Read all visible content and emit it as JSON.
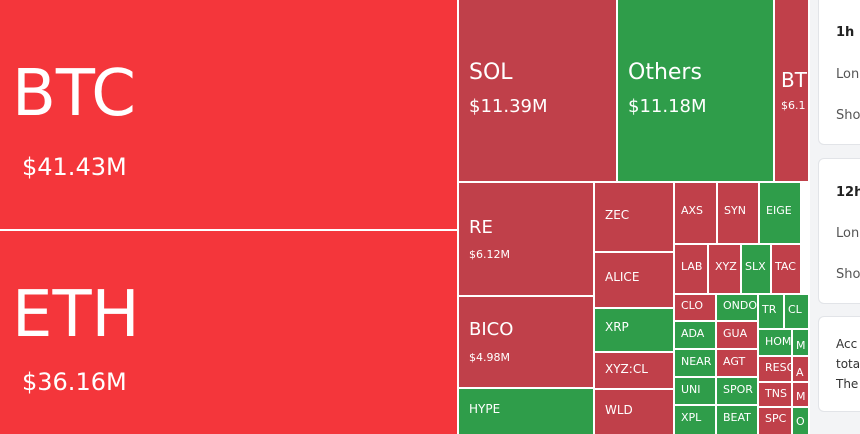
{
  "tiles": [
    {
      "label": "BTC",
      "value": "$41.43M"
    },
    {
      "label": "ETH",
      "value": "$36.16M"
    },
    {
      "label": "SOL",
      "value": "$11.39M"
    },
    {
      "label": "Others",
      "value": "$11.18M"
    },
    {
      "label": "BT",
      "value": "$6.1"
    },
    {
      "label": "RE",
      "value": "$6.12M"
    },
    {
      "label": "BICO",
      "value": "$4.98M"
    },
    {
      "label": "HYPE"
    },
    {
      "label": "ZEC"
    },
    {
      "label": "ALICE"
    },
    {
      "label": "XRP"
    },
    {
      "label": "XYZ:CL"
    },
    {
      "label": "WLD"
    },
    {
      "label": "AXS"
    },
    {
      "label": "SYN"
    },
    {
      "label": "EIGE"
    },
    {
      "label": "LAB"
    },
    {
      "label": "XYZ"
    },
    {
      "label": "SLX"
    },
    {
      "label": "TAC"
    },
    {
      "label": "CLO"
    },
    {
      "label": "ONDO"
    },
    {
      "label": "TR"
    },
    {
      "label": "CL"
    },
    {
      "label": "ADA"
    },
    {
      "label": "GUA"
    },
    {
      "label": "HOM"
    },
    {
      "label": "M"
    },
    {
      "label": "NEAR"
    },
    {
      "label": "AGT"
    },
    {
      "label": "RESO"
    },
    {
      "label": "A"
    },
    {
      "label": "UNI"
    },
    {
      "label": "SPOR"
    },
    {
      "label": "TNS"
    },
    {
      "label": "M"
    },
    {
      "label": "XPL"
    },
    {
      "label": "BEAT"
    },
    {
      "label": "SPC"
    },
    {
      "label": "O"
    }
  ],
  "cards": [
    {
      "title": "1h",
      "rows": [
        "Lon",
        "Sho"
      ]
    },
    {
      "title": "12h",
      "rows": [
        "Lon",
        "Sho"
      ]
    },
    {
      "lines": [
        "Acc",
        "tota",
        "The"
      ]
    }
  ]
}
